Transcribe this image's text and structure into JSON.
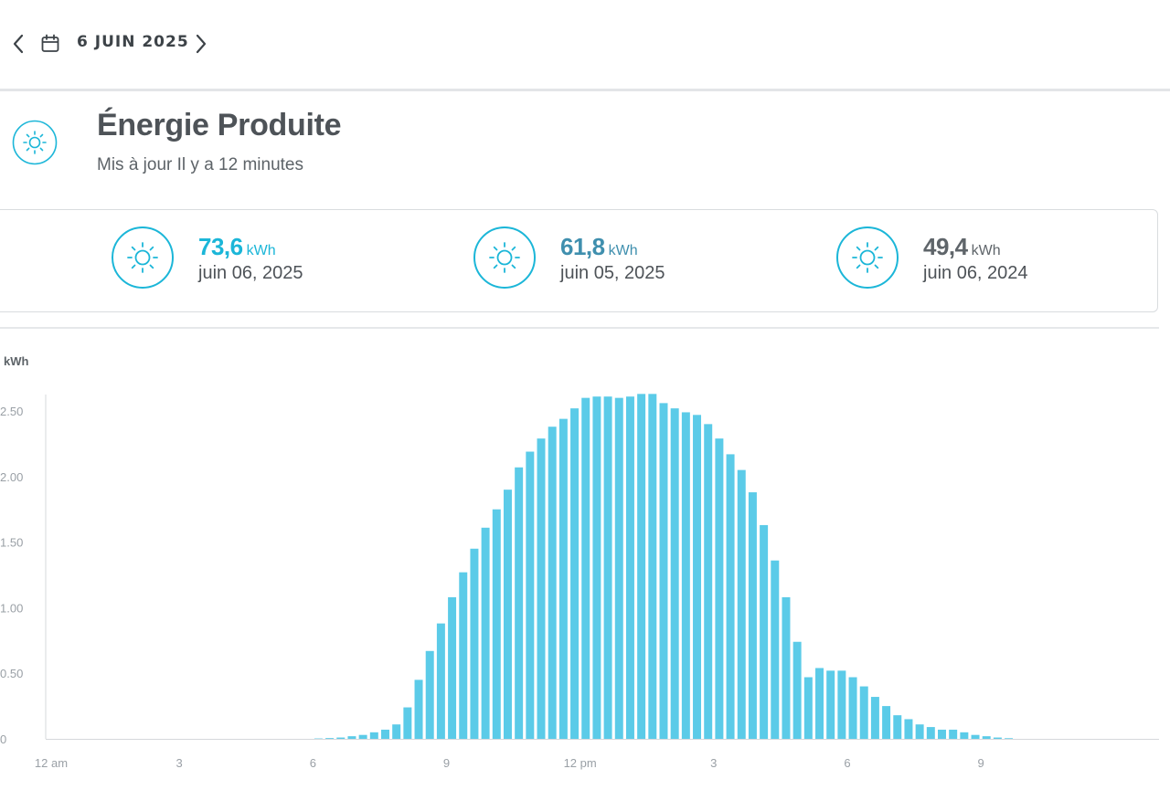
{
  "header": {
    "date": "6 JUIN 2025",
    "prev_icon": "chevron-left-icon",
    "next_icon": "chevron-right-icon",
    "calendar_icon": "calendar-icon"
  },
  "section": {
    "title": "Énergie Produite",
    "subtitle": "Mis à jour Il y a 12 minutes",
    "icon": "sun-icon"
  },
  "stats": [
    {
      "value": "73,6",
      "unit": "kWh",
      "date": "juin 06, 2025",
      "color": "#1bb6d8"
    },
    {
      "value": "61,8",
      "unit": "kWh",
      "date": "juin 05, 2025",
      "color": "#3f8fae"
    },
    {
      "value": "49,4",
      "unit": "kWh",
      "date": "juin 06, 2024",
      "color": "#5f656a"
    }
  ],
  "colors": {
    "accent": "#1bb6d8",
    "bar": "#5bcbe8"
  },
  "chart_data": {
    "type": "bar",
    "ylabel": "kWh",
    "ylim": [
      0,
      2.64
    ],
    "y_ticks": [
      "0",
      "0.50",
      "1.00",
      "1.50",
      "2.00",
      "2.50"
    ],
    "y_tick_values": [
      0,
      0.5,
      1.0,
      1.5,
      2.0,
      2.5
    ],
    "x_ticks": [
      "12 am",
      "3",
      "6",
      "9",
      "12 pm",
      "3",
      "6",
      "9"
    ],
    "x_tick_hours": [
      0,
      3,
      6,
      9,
      12,
      15,
      18,
      21
    ],
    "interval_minutes": 15,
    "values": [
      0,
      0,
      0,
      0,
      0,
      0,
      0,
      0,
      0,
      0,
      0,
      0,
      0,
      0,
      0,
      0,
      0,
      0,
      0,
      0,
      0,
      0,
      0,
      0,
      0.003,
      0.006,
      0.01,
      0.02,
      0.03,
      0.05,
      0.07,
      0.11,
      0.24,
      0.45,
      0.67,
      0.88,
      1.08,
      1.27,
      1.45,
      1.61,
      1.75,
      1.9,
      2.07,
      2.19,
      2.29,
      2.38,
      2.44,
      2.52,
      2.6,
      2.61,
      2.61,
      2.6,
      2.61,
      2.63,
      2.63,
      2.56,
      2.52,
      2.49,
      2.47,
      2.4,
      2.29,
      2.17,
      2.05,
      1.88,
      1.63,
      1.36,
      1.08,
      0.74,
      0.47,
      0.54,
      0.52,
      0.52,
      0.47,
      0.4,
      0.32,
      0.25,
      0.18,
      0.15,
      0.11,
      0.09,
      0.07,
      0.07,
      0.05,
      0.03,
      0.02,
      0.01,
      0.005,
      0,
      0,
      0,
      0,
      0,
      0,
      0,
      0,
      0,
      0,
      0,
      0,
      0
    ]
  }
}
